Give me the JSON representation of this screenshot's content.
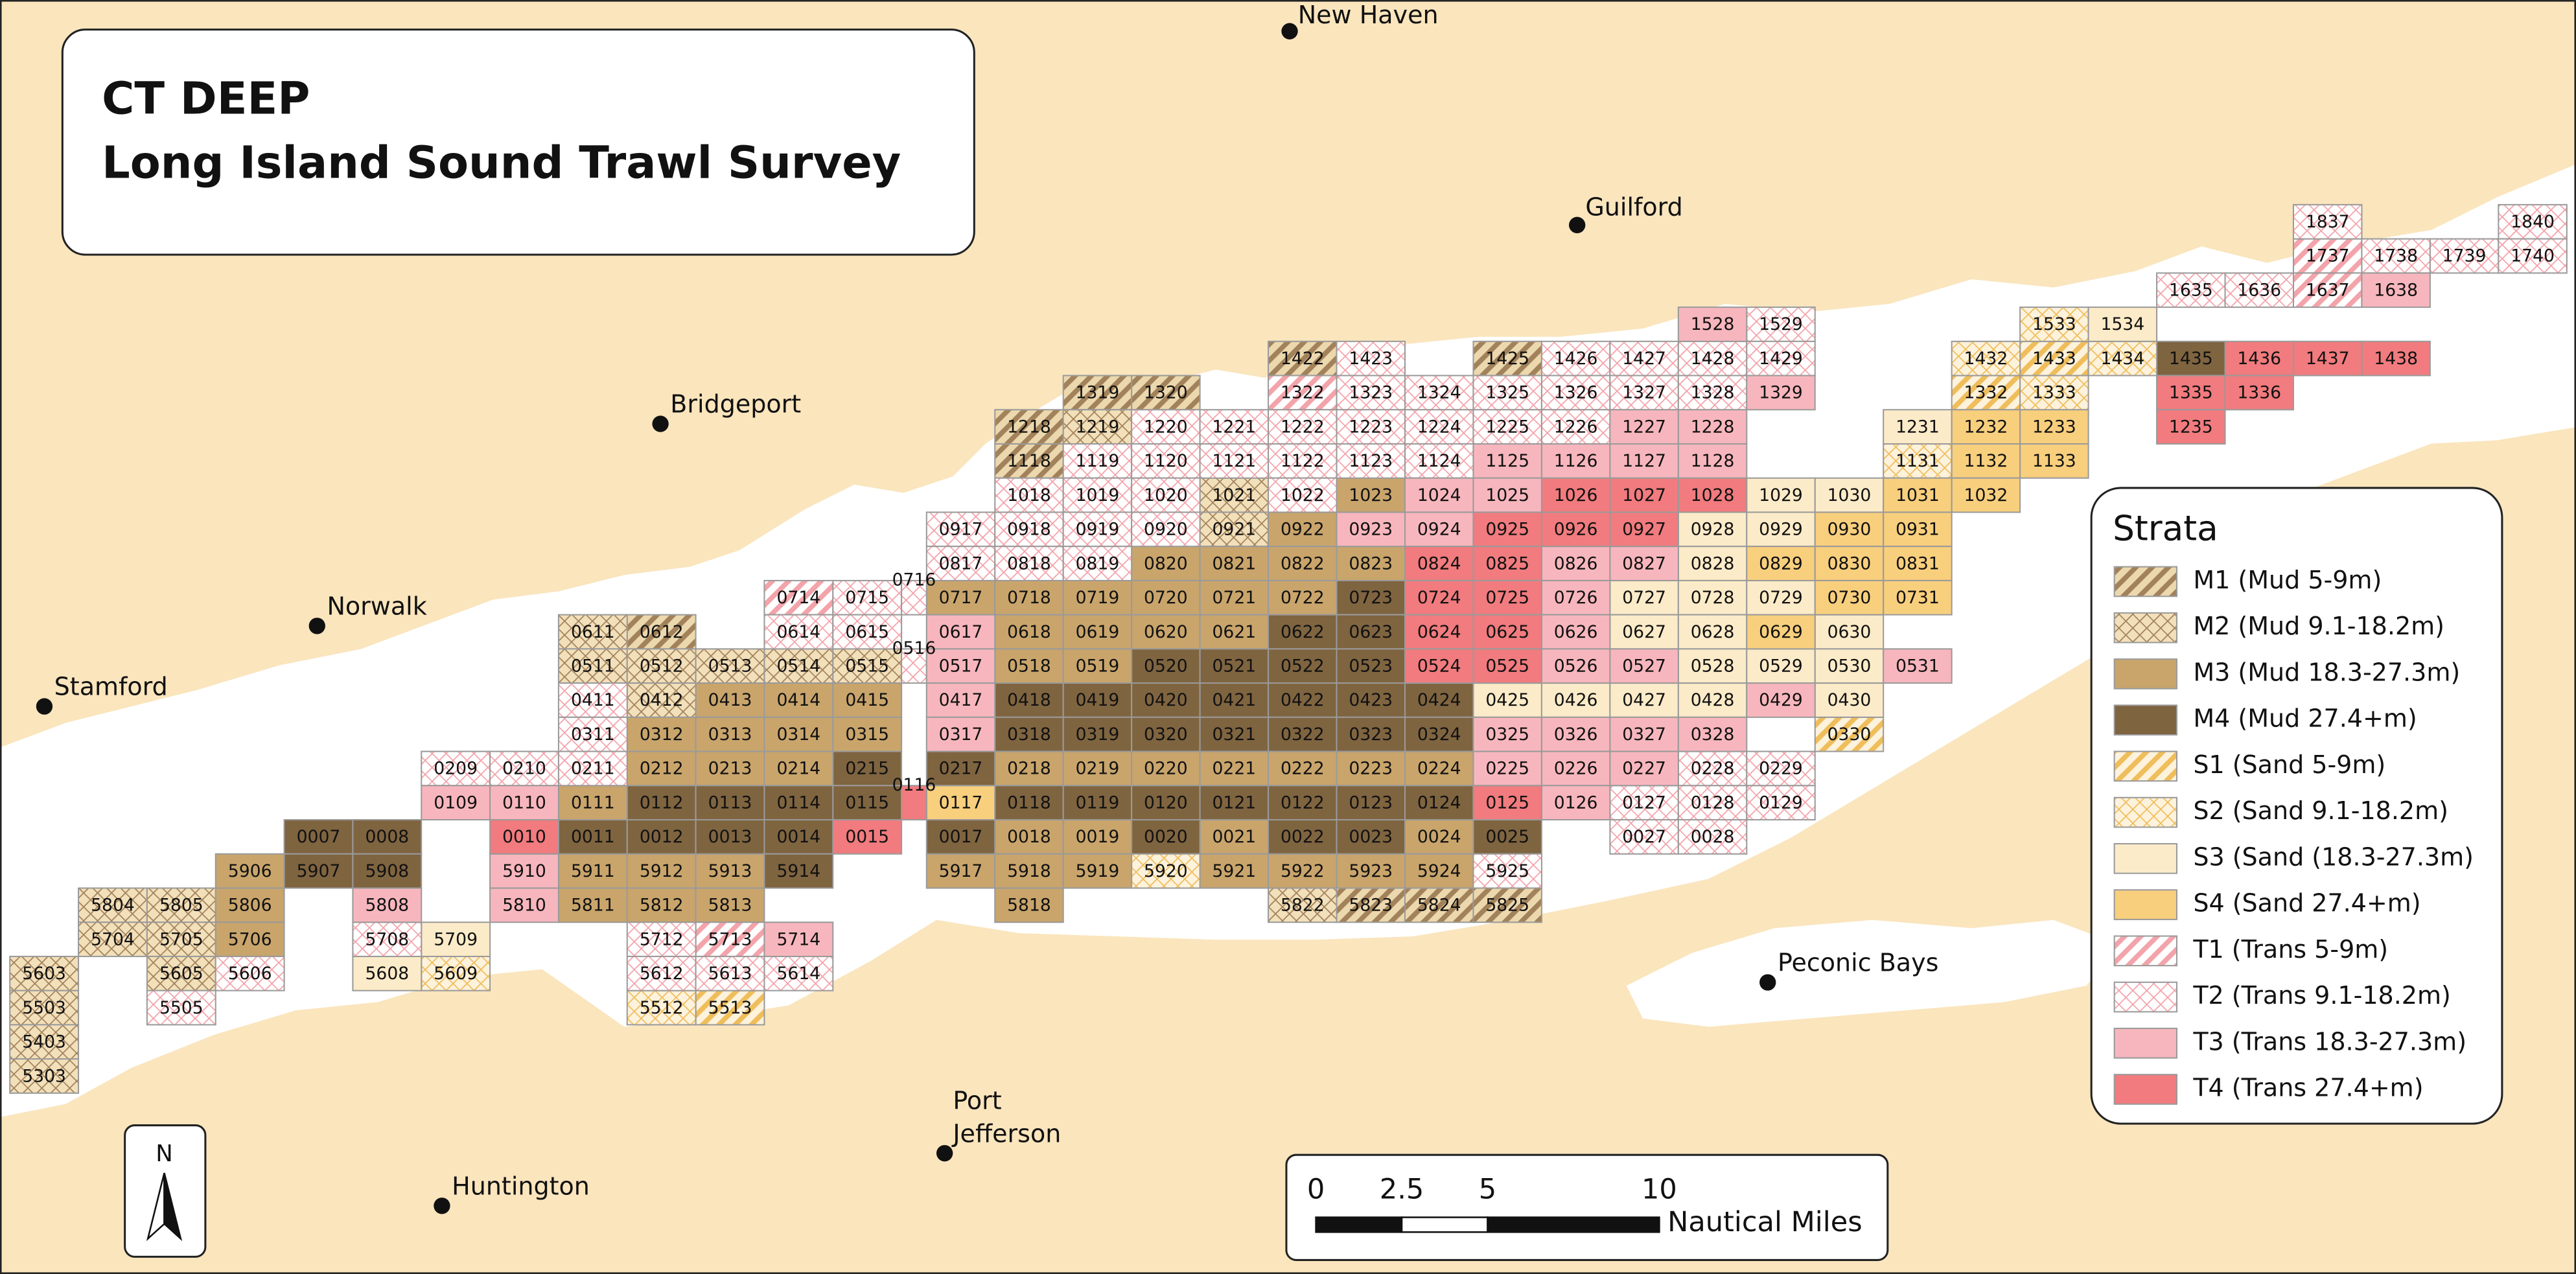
{
  "title": {
    "line1": "CT DEEP",
    "line2": "Long Island Sound Trawl Survey"
  },
  "places": [
    {
      "lines": [
        "New Haven"
      ]
    },
    {
      "lines": [
        "Guilford"
      ]
    },
    {
      "lines": [
        "Bridgeport"
      ]
    },
    {
      "lines": [
        "Norwalk"
      ]
    },
    {
      "lines": [
        "Stamford"
      ]
    },
    {
      "lines": [
        "Huntington"
      ]
    },
    {
      "lines": [
        "Port",
        "Jefferson"
      ]
    },
    {
      "lines": [
        "Peconic Bays"
      ]
    }
  ],
  "legend_title": "Strata",
  "strata": [
    {
      "label": "M1 (Mud 5-9m)",
      "cells": [
        "1422",
        "1425",
        "1319",
        "1320",
        "1218",
        "1118",
        "0612",
        "5823",
        "5824",
        "5825"
      ]
    },
    {
      "label": "M2 (Mud 9.1-18.2m)",
      "cells": [
        "1219",
        "1021",
        "0921",
        "0611",
        "0511",
        "0512",
        "0513",
        "0514",
        "0515",
        "0412",
        "5804",
        "5805",
        "5704",
        "5705",
        "5603",
        "5605",
        "5503",
        "5403",
        "5303",
        "5822"
      ]
    },
    {
      "label": "M3 (Mud 18.3-27.3m)",
      "cells": [
        "1023",
        "0922",
        "0820",
        "0821",
        "0822",
        "0823",
        "0717",
        "0718",
        "0719",
        "0720",
        "0721",
        "0722",
        "0618",
        "0619",
        "0620",
        "0621",
        "0518",
        "0519",
        "0413",
        "0414",
        "0415",
        "0312",
        "0313",
        "0314",
        "0315",
        "0212",
        "0213",
        "0214",
        "0218",
        "0219",
        "0220",
        "0221",
        "0222",
        "0223",
        "0224",
        "0111",
        "0018",
        "0019",
        "0021",
        "0024",
        "5906",
        "5911",
        "5912",
        "5913",
        "5917",
        "5918",
        "5919",
        "5921",
        "5922",
        "5923",
        "5924",
        "5806",
        "5811",
        "5812",
        "5813",
        "5818",
        "5706"
      ]
    },
    {
      "label": "M4 (Mud 27.4+m)",
      "cells": [
        "1435",
        "0723",
        "0622",
        "0623",
        "0520",
        "0521",
        "0522",
        "0523",
        "0418",
        "0419",
        "0420",
        "0421",
        "0422",
        "0423",
        "0424",
        "0318",
        "0319",
        "0320",
        "0321",
        "0322",
        "0323",
        "0324",
        "0215",
        "0217",
        "0112",
        "0113",
        "0114",
        "0115",
        "0118",
        "0119",
        "0120",
        "0121",
        "0122",
        "0123",
        "0124",
        "0007",
        "0008",
        "0011",
        "0012",
        "0013",
        "0014",
        "0017",
        "0020",
        "0022",
        "0023",
        "0025",
        "5907",
        "5908",
        "5914"
      ]
    },
    {
      "label": "S1 (Sand 5-9m)",
      "cells": [
        "1433",
        "1332",
        "0330",
        "5513"
      ]
    },
    {
      "label": "S2 (Sand 9.1-18.2m)",
      "cells": [
        "1533",
        "1432",
        "1434",
        "1333",
        "1131",
        "5920",
        "5609",
        "5512"
      ]
    },
    {
      "label": "S3 (Sand (18.3-27.3m)",
      "cells": [
        "1534",
        "1231",
        "1029",
        "1030",
        "0928",
        "0929",
        "0828",
        "0727",
        "0728",
        "0729",
        "0627",
        "0628",
        "0630",
        "0528",
        "0529",
        "0530",
        "0425",
        "0426",
        "0427",
        "0428",
        "0430",
        "5709",
        "5608"
      ]
    },
    {
      "label": "S4 (Sand 27.4+m)",
      "cells": [
        "1232",
        "1233",
        "1132",
        "1133",
        "1031",
        "1032",
        "0930",
        "0931",
        "0829",
        "0830",
        "0831",
        "0730",
        "0731",
        "0629",
        "0117"
      ]
    },
    {
      "label": "T1 (Trans 5-9m)",
      "cells": [
        "1737",
        "1637",
        "1322",
        "0714",
        "5713"
      ]
    },
    {
      "label": "T2 (Trans 9.1-18.2m)",
      "cells": [
        "1837",
        "1840",
        "1738",
        "1739",
        "1740",
        "1635",
        "1636",
        "1529",
        "1423",
        "1426",
        "1427",
        "1428",
        "1429",
        "1323",
        "1324",
        "1325",
        "1326",
        "1327",
        "1328",
        "1220",
        "1221",
        "1222",
        "1223",
        "1224",
        "1225",
        "1226",
        "1119",
        "1120",
        "1121",
        "1122",
        "1123",
        "1124",
        "1018",
        "1019",
        "1020",
        "1022",
        "0917",
        "0918",
        "0919",
        "0920",
        "0817",
        "0818",
        "0819",
        "0715",
        "0716",
        "0614",
        "0615",
        "0516",
        "0411",
        "0311",
        "0209",
        "0210",
        "0211",
        "0228",
        "0229",
        "0127",
        "0128",
        "0129",
        "0027",
        "0028",
        "5925",
        "5708",
        "5712",
        "5606",
        "5612",
        "5613",
        "5614",
        "5505"
      ]
    },
    {
      "label": "T3 (Trans 18.3-27.3m)",
      "cells": [
        "1638",
        "1528",
        "1329",
        "1227",
        "1228",
        "1125",
        "1126",
        "1127",
        "1128",
        "1024",
        "1025",
        "0923",
        "0924",
        "0826",
        "0827",
        "0726",
        "0617",
        "0626",
        "0517",
        "0526",
        "0527",
        "0531",
        "0417",
        "0429",
        "0317",
        "0325",
        "0326",
        "0327",
        "0328",
        "0225",
        "0226",
        "0227",
        "0109",
        "0110",
        "0126",
        "5910",
        "5808",
        "5810",
        "5714"
      ]
    },
    {
      "label": "T4 (Trans 27.4+m)",
      "cells": [
        "1436",
        "1437",
        "1438",
        "1335",
        "1336",
        "1235",
        "1026",
        "1027",
        "1028",
        "0925",
        "0926",
        "0927",
        "0824",
        "0825",
        "0724",
        "0725",
        "0624",
        "0625",
        "0524",
        "0525",
        "0116",
        "0125",
        "0010",
        "0015"
      ]
    }
  ],
  "north": "N",
  "scale_bar": {
    "ticks": [
      0,
      2.5,
      5,
      10
    ],
    "unit": "Nautical Miles"
  }
}
